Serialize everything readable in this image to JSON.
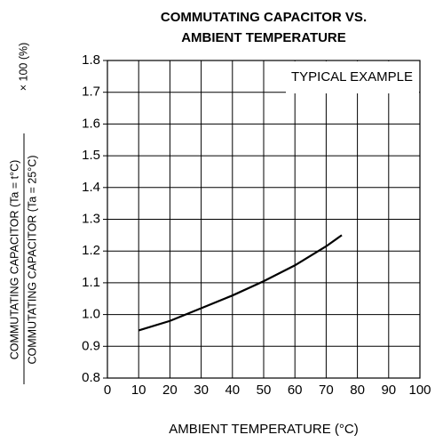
{
  "chart_data": {
    "type": "line",
    "title": [
      "COMMUTATING CAPACITOR VS.",
      "AMBIENT TEMPERATURE"
    ],
    "x_label": "AMBIENT TEMPERATURE  (°C)",
    "y_label": {
      "numerator": "COMMUTATING CAPACITOR (Ta = t°C)",
      "denominator": "COMMUTATING CAPACITOR (Ta = 25°C)",
      "suffix": "× 100 (%)"
    },
    "annotation": "TYPICAL EXAMPLE",
    "x": [
      10,
      20,
      25,
      30,
      40,
      50,
      60,
      70,
      75
    ],
    "values": [
      0.95,
      0.98,
      1.0,
      1.02,
      1.06,
      1.105,
      1.155,
      1.215,
      1.25
    ],
    "color": "#000000",
    "xlim": [
      0,
      100
    ],
    "xticks": [
      0,
      10,
      20,
      30,
      40,
      50,
      60,
      70,
      80,
      90,
      100
    ],
    "ylim": [
      0.8,
      1.8
    ],
    "yticks": [
      0.8,
      0.9,
      {
        "value": 1,
        "label": "1.0"
      },
      1.1,
      1.2,
      1.3,
      1.4,
      1.5,
      1.6,
      1.7,
      1.8
    ],
    "grid": true
  }
}
